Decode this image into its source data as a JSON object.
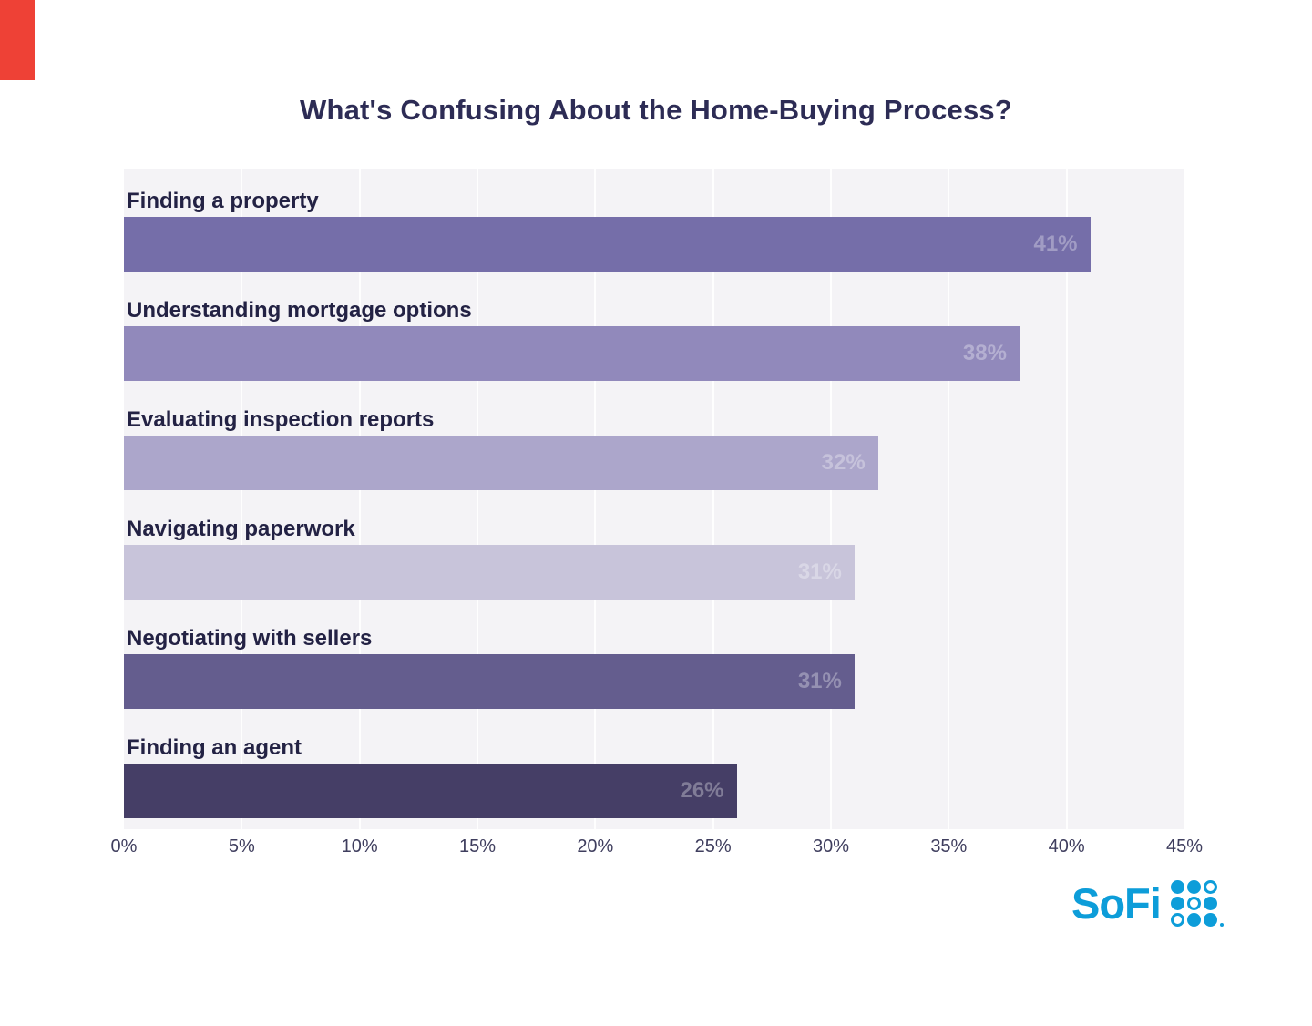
{
  "title": "What's Confusing About the Home-Buying Process?",
  "chart_data": {
    "type": "bar",
    "orientation": "horizontal",
    "title": "What's Confusing About the Home-Buying Process?",
    "categories": [
      "Finding a property",
      "Understanding mortgage options",
      "Evaluating inspection reports",
      "Navigating paperwork",
      "Negotiating with sellers",
      "Finding an agent"
    ],
    "values": [
      41,
      38,
      32,
      31,
      31,
      26
    ],
    "value_labels": [
      "41%",
      "38%",
      "32%",
      "31%",
      "31%",
      "26%"
    ],
    "bar_colors": [
      "#756ea9",
      "#9189bb",
      "#aca6cb",
      "#c8c4da",
      "#645d8e",
      "#453e66"
    ],
    "x_ticks": [
      "0%",
      "5%",
      "10%",
      "15%",
      "20%",
      "25%",
      "30%",
      "35%",
      "40%",
      "45%"
    ],
    "x_tick_values": [
      0,
      5,
      10,
      15,
      20,
      25,
      30,
      35,
      40,
      45
    ],
    "xlim": [
      0,
      45
    ],
    "grid": true,
    "legend": false,
    "plot_background": "#f4f3f6",
    "value_label_style": "white semi-transparent, inside bar right end"
  },
  "branding": {
    "logo_text": "SoFi",
    "logo_color": "#0d9dd9",
    "dot_grid": [
      [
        1,
        1,
        0
      ],
      [
        1,
        0,
        1
      ],
      [
        0,
        1,
        1
      ]
    ]
  },
  "artifacts": {
    "corner_shape_color": "#ee4136"
  }
}
